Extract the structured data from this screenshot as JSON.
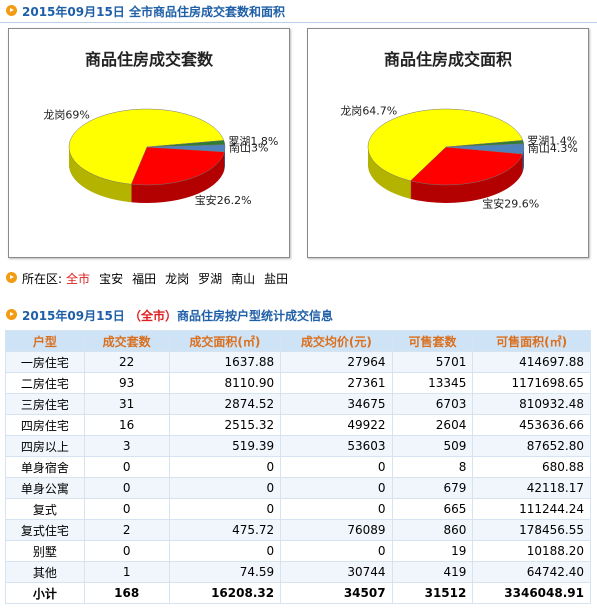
{
  "header": {
    "title": "2015年09月15日 全市商品住房成交套数和面积"
  },
  "chart_data": [
    {
      "type": "pie",
      "title": "商品住房成交套数",
      "categories": [
        "龙岗",
        "宝安",
        "南山",
        "罗湖"
      ],
      "values": [
        69,
        26.2,
        3,
        1.8
      ],
      "value_labels": [
        "69%",
        "26.2%",
        "3%",
        "1.8%"
      ],
      "colors": [
        "#ffff00",
        "#ff0000",
        "#4f81bd",
        "#2e7d32"
      ]
    },
    {
      "type": "pie",
      "title": "商品住房成交面积",
      "categories": [
        "龙岗",
        "宝安",
        "南山",
        "罗湖"
      ],
      "values": [
        64.7,
        29.6,
        4.3,
        1.4
      ],
      "value_labels": [
        "64.7%",
        "29.6%",
        "4.3%",
        "1.4%"
      ],
      "colors": [
        "#ffff00",
        "#ff0000",
        "#4f81bd",
        "#2e7d32"
      ]
    }
  ],
  "filter": {
    "label": "所在区:",
    "options": [
      "全市",
      "宝安",
      "福田",
      "龙岗",
      "罗湖",
      "南山",
      "盐田"
    ]
  },
  "section": {
    "date": "2015年09月15日",
    "district": "（全市）",
    "title": "商品住房按户型统计成交信息"
  },
  "table": {
    "columns": [
      "户型",
      "成交套数",
      "成交面积(㎡)",
      "成交均价(元)",
      "可售套数",
      "可售面积(㎡)"
    ],
    "rows": [
      [
        "一房住宅",
        "22",
        "1637.88",
        "27964",
        "5701",
        "414697.88"
      ],
      [
        "二房住宅",
        "93",
        "8110.90",
        "27361",
        "13345",
        "1171698.65"
      ],
      [
        "三房住宅",
        "31",
        "2874.52",
        "34675",
        "6703",
        "810932.48"
      ],
      [
        "四房住宅",
        "16",
        "2515.32",
        "49922",
        "2604",
        "453636.66"
      ],
      [
        "四房以上",
        "3",
        "519.39",
        "53603",
        "509",
        "87652.80"
      ],
      [
        "单身宿舍",
        "0",
        "0",
        "0",
        "8",
        "680.88"
      ],
      [
        "单身公寓",
        "0",
        "0",
        "0",
        "679",
        "42118.17"
      ],
      [
        "复式",
        "0",
        "0",
        "0",
        "665",
        "111244.24"
      ],
      [
        "复式住宅",
        "2",
        "475.72",
        "76089",
        "860",
        "178456.55"
      ],
      [
        "别墅",
        "0",
        "0",
        "0",
        "19",
        "10188.20"
      ],
      [
        "其他",
        "1",
        "74.59",
        "30744",
        "419",
        "64742.40"
      ],
      [
        "小计",
        "168",
        "16208.32",
        "34507",
        "31512",
        "3346048.91"
      ]
    ]
  }
}
